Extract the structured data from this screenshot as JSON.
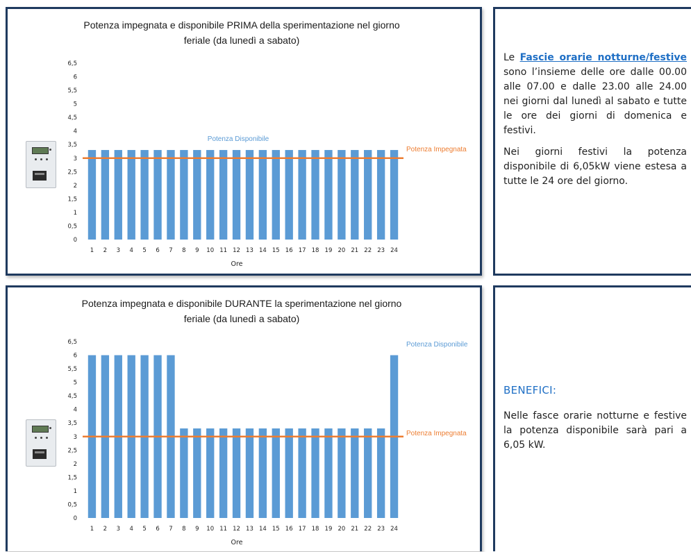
{
  "colors": {
    "bar": "#5b9bd5",
    "line": "#ed7d31",
    "heading": "#1f6fc5",
    "frame": "#1f3a5f"
  },
  "icons": {
    "meter": "electricity-meter-icon"
  },
  "chart_data": [
    {
      "type": "bar",
      "title_line1": "Potenza impegnata e disponibile PRIMA della sperimentazione nel giorno",
      "title_line2": "feriale (da lunedì a sabato)",
      "xlabel": "Ore",
      "ylabel": "",
      "ylim": [
        0,
        6.5
      ],
      "yticks": [
        "0",
        "0,5",
        "1",
        "1,5",
        "2",
        "2,5",
        "3",
        "3,5",
        "4",
        "4,5",
        "5",
        "5,5",
        "6",
        "6,5"
      ],
      "categories": [
        "1",
        "2",
        "3",
        "4",
        "5",
        "6",
        "7",
        "8",
        "9",
        "10",
        "11",
        "12",
        "13",
        "14",
        "15",
        "16",
        "17",
        "18",
        "19",
        "20",
        "21",
        "22",
        "23",
        "24"
      ],
      "series": [
        {
          "name": "Potenza Disponibile",
          "type": "bar",
          "values": [
            3.3,
            3.3,
            3.3,
            3.3,
            3.3,
            3.3,
            3.3,
            3.3,
            3.3,
            3.3,
            3.3,
            3.3,
            3.3,
            3.3,
            3.3,
            3.3,
            3.3,
            3.3,
            3.3,
            3.3,
            3.3,
            3.3,
            3.3,
            3.3
          ]
        },
        {
          "name": "Potenza Impegnata",
          "type": "line",
          "value": 3
        }
      ],
      "grid": false
    },
    {
      "type": "bar",
      "title_line1": "Potenza impegnata e disponibile DURANTE la sperimentazione nel giorno",
      "title_line2": "feriale (da lunedì a sabato)",
      "xlabel": "Ore",
      "ylabel": "",
      "ylim": [
        0,
        6.5
      ],
      "yticks": [
        "0",
        "0,5",
        "1",
        "1,5",
        "2",
        "2,5",
        "3",
        "3,5",
        "4",
        "4,5",
        "5",
        "5,5",
        "6",
        "6,5"
      ],
      "categories": [
        "1",
        "2",
        "3",
        "4",
        "5",
        "6",
        "7",
        "8",
        "9",
        "10",
        "11",
        "12",
        "13",
        "14",
        "15",
        "16",
        "17",
        "18",
        "19",
        "20",
        "21",
        "22",
        "23",
        "24"
      ],
      "series": [
        {
          "name": "Potenza Disponibile",
          "type": "bar",
          "values": [
            6,
            6,
            6,
            6,
            6,
            6,
            6,
            3.3,
            3.3,
            3.3,
            3.3,
            3.3,
            3.3,
            3.3,
            3.3,
            3.3,
            3.3,
            3.3,
            3.3,
            3.3,
            3.3,
            3.3,
            3.3,
            6
          ]
        },
        {
          "name": "Potenza Impegnata",
          "type": "line",
          "value": 3
        }
      ],
      "grid": false
    }
  ],
  "side_top": {
    "p1_prefix": "Le ",
    "p1_link": "Fascie orarie notturne/festive",
    "p1_rest": " sono l’insieme delle ore dalle 00.00 alle 07.00 e dalle 23.00 alle 24.00 nei giorni dal lunedì al sabato e tutte le ore dei giorni di domenica e festivi.",
    "p2": "Nei giorni festivi la potenza disponibile di 6,05kW viene estesa a tutte le 24 ore del giorno."
  },
  "side_bottom": {
    "heading": "BENEFICI:",
    "p1": "Nelle fasce orarie notturne e festive la potenza disponibile sarà pari a 6,05 kW."
  }
}
